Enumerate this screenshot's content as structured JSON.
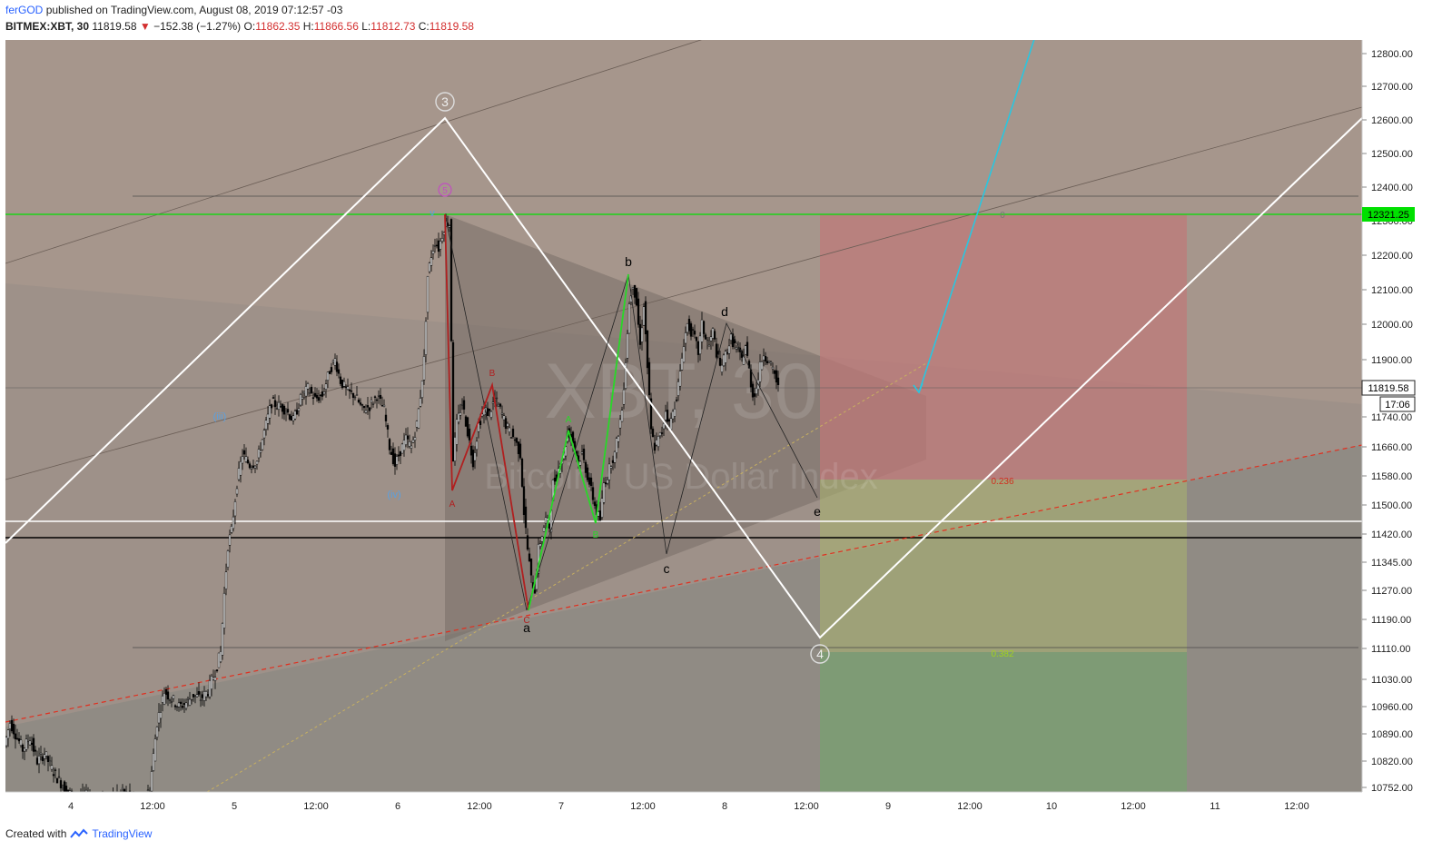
{
  "header": {
    "author": "ferGOD",
    "published": "published on TradingView.com, August 08, 2019 07:12:57 -03",
    "symbol": "BITMEX:XBT, 30",
    "last": "11819.58",
    "change": "−152.38 (−1.27%)",
    "open_label": "O:",
    "open": "11862.35",
    "high_label": "H:",
    "high": "11866.56",
    "low_label": "L:",
    "low": "11812.73",
    "close_label": "C:",
    "close": "11819.58"
  },
  "footer": {
    "created_with": "Created with",
    "brand": "TradingView"
  },
  "watermark": {
    "symbol": "XBT, 30",
    "description": "Bitcoin / US Dollar Index"
  },
  "colors": {
    "up": "#000000",
    "down": "#000000",
    "green_line": "#00e000",
    "cyan": "#29c6e0",
    "white": "#ffffff",
    "red_zone": "#d08080",
    "green_zone": "#88b070"
  },
  "chart_data": {
    "type": "candlestick",
    "ylim": [
      10710,
      12870
    ],
    "y_ticks": [
      "12800.00",
      "12700.00",
      "12600.00",
      "12500.00",
      "12400.00",
      "12300.00",
      "12200.00",
      "12100.00",
      "12000.00",
      "11900.00",
      "11740.00",
      "11660.00",
      "11580.00",
      "11500.00",
      "11420.00",
      "11345.00",
      "11270.00",
      "11190.00",
      "11110.00",
      "11030.00",
      "10960.00",
      "10890.00",
      "10820.00",
      "10752.00"
    ],
    "x_ticks": [
      "4",
      "12:00",
      "5",
      "12:00",
      "6",
      "12:00",
      "7",
      "12:00",
      "8",
      "12:00",
      "9",
      "12:00",
      "10",
      "12:00",
      "11",
      "12:00"
    ],
    "price_badges": {
      "green_level": "12321.25",
      "last": "11819.58",
      "countdown": "17:06"
    },
    "fib_labels": [
      "0",
      "0.236",
      "0.382"
    ],
    "elliott_major": [
      "3",
      "5",
      "4"
    ],
    "elliott_abc_red": [
      "A",
      "B",
      "C"
    ],
    "elliott_green": [
      "A",
      "B"
    ],
    "triangle_labels": [
      "a",
      "b",
      "c",
      "d",
      "e"
    ],
    "misc_labels": [
      "(iii)",
      "(iv)",
      "v"
    ],
    "candle_path": [
      [
        0,
        10860
      ],
      [
        6,
        10920
      ],
      [
        12,
        10890
      ],
      [
        20,
        10850
      ],
      [
        28,
        10880
      ],
      [
        36,
        10820
      ],
      [
        44,
        10840
      ],
      [
        52,
        10800
      ],
      [
        60,
        10770
      ],
      [
        70,
        10740
      ],
      [
        80,
        10720
      ],
      [
        90,
        10730
      ],
      [
        100,
        10700
      ],
      [
        110,
        10720
      ],
      [
        122,
        10730
      ],
      [
        132,
        10740
      ],
      [
        140,
        10720
      ],
      [
        150,
        10710
      ],
      [
        160,
        10750
      ],
      [
        168,
        10920
      ],
      [
        176,
        11000
      ],
      [
        184,
        10980
      ],
      [
        192,
        10960
      ],
      [
        200,
        10970
      ],
      [
        208,
        10990
      ],
      [
        216,
        10980
      ],
      [
        224,
        11000
      ],
      [
        232,
        11050
      ],
      [
        238,
        11100
      ],
      [
        242,
        11260
      ],
      [
        246,
        11390
      ],
      [
        250,
        11430
      ],
      [
        256,
        11560
      ],
      [
        262,
        11640
      ],
      [
        270,
        11610
      ],
      [
        278,
        11620
      ],
      [
        286,
        11700
      ],
      [
        294,
        11780
      ],
      [
        302,
        11770
      ],
      [
        310,
        11760
      ],
      [
        318,
        11730
      ],
      [
        326,
        11790
      ],
      [
        334,
        11820
      ],
      [
        342,
        11790
      ],
      [
        350,
        11800
      ],
      [
        358,
        11870
      ],
      [
        364,
        11900
      ],
      [
        370,
        11840
      ],
      [
        378,
        11810
      ],
      [
        386,
        11800
      ],
      [
        394,
        11760
      ],
      [
        402,
        11770
      ],
      [
        410,
        11800
      ],
      [
        418,
        11760
      ],
      [
        424,
        11660
      ],
      [
        430,
        11610
      ],
      [
        436,
        11650
      ],
      [
        442,
        11680
      ],
      [
        448,
        11660
      ],
      [
        454,
        11720
      ],
      [
        458,
        11800
      ],
      [
        462,
        11900
      ],
      [
        466,
        12140
      ],
      [
        470,
        12200
      ],
      [
        474,
        12240
      ],
      [
        478,
        12220
      ],
      [
        482,
        12260
      ],
      [
        486,
        12300
      ],
      [
        490,
        12290
      ],
      [
        494,
        11630
      ],
      [
        498,
        11720
      ],
      [
        504,
        11780
      ],
      [
        510,
        11700
      ],
      [
        516,
        11620
      ],
      [
        522,
        11720
      ],
      [
        528,
        11760
      ],
      [
        534,
        11750
      ],
      [
        540,
        11790
      ],
      [
        546,
        11760
      ],
      [
        552,
        11720
      ],
      [
        556,
        11700
      ],
      [
        562,
        11680
      ],
      [
        568,
        11640
      ],
      [
        572,
        11480
      ],
      [
        576,
        11380
      ],
      [
        580,
        11300
      ],
      [
        584,
        11270
      ],
      [
        588,
        11380
      ],
      [
        592,
        11420
      ],
      [
        596,
        11460
      ],
      [
        600,
        11440
      ],
      [
        604,
        11560
      ],
      [
        608,
        11580
      ],
      [
        612,
        11620
      ],
      [
        616,
        11640
      ],
      [
        620,
        11700
      ],
      [
        624,
        11690
      ],
      [
        628,
        11660
      ],
      [
        632,
        11620
      ],
      [
        636,
        11640
      ],
      [
        640,
        11600
      ],
      [
        644,
        11560
      ],
      [
        648,
        11520
      ],
      [
        652,
        11480
      ],
      [
        656,
        11460
      ],
      [
        660,
        11560
      ],
      [
        664,
        11580
      ],
      [
        668,
        11620
      ],
      [
        672,
        11640
      ],
      [
        676,
        11700
      ],
      [
        680,
        11760
      ],
      [
        684,
        11900
      ],
      [
        688,
        12060
      ],
      [
        692,
        12120
      ],
      [
        696,
        12060
      ],
      [
        700,
        11940
      ],
      [
        704,
        12060
      ],
      [
        708,
        11880
      ],
      [
        712,
        11700
      ],
      [
        716,
        11660
      ],
      [
        720,
        11680
      ],
      [
        724,
        11700
      ],
      [
        728,
        11760
      ],
      [
        732,
        11720
      ],
      [
        736,
        11750
      ],
      [
        740,
        11800
      ],
      [
        744,
        11860
      ],
      [
        748,
        11950
      ],
      [
        752,
        12000
      ],
      [
        756,
        11980
      ],
      [
        760,
        11960
      ],
      [
        764,
        11920
      ],
      [
        768,
        12000
      ],
      [
        772,
        11960
      ],
      [
        776,
        11940
      ],
      [
        780,
        11980
      ],
      [
        784,
        11920
      ],
      [
        788,
        11880
      ],
      [
        792,
        11900
      ],
      [
        796,
        11930
      ],
      [
        800,
        11960
      ],
      [
        804,
        11940
      ],
      [
        808,
        11920
      ],
      [
        812,
        11900
      ],
      [
        816,
        11940
      ],
      [
        820,
        11870
      ],
      [
        824,
        11800
      ],
      [
        828,
        11820
      ],
      [
        832,
        11880
      ],
      [
        836,
        11920
      ],
      [
        840,
        11900
      ],
      [
        844,
        11880
      ],
      [
        848,
        11860
      ],
      [
        852,
        11820
      ]
    ]
  }
}
